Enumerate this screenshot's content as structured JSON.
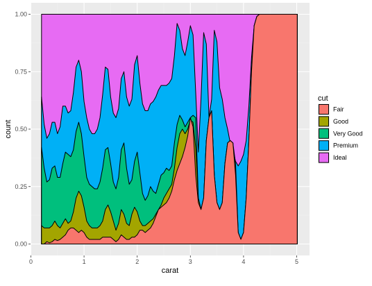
{
  "chart_data": {
    "type": "area",
    "subtype": "stacked filled density (proportion)",
    "xlabel": "carat",
    "ylabel": "count",
    "xlim": [
      0,
      5.2
    ],
    "ylim": [
      0,
      1
    ],
    "x_ticks": [
      "0",
      "1",
      "2",
      "3",
      "4",
      "5"
    ],
    "y_ticks": [
      "0.00",
      "0.25",
      "0.50",
      "0.75",
      "1.00"
    ],
    "x_tick_values": [
      0,
      1,
      2,
      3,
      4,
      5
    ],
    "y_tick_values": [
      0,
      0.25,
      0.5,
      0.75,
      1
    ],
    "grid": true,
    "legend_position": "right",
    "legend_title": "cut",
    "x": [
      0.2,
      0.25,
      0.3,
      0.35,
      0.4,
      0.45,
      0.5,
      0.55,
      0.6,
      0.65,
      0.7,
      0.75,
      0.8,
      0.85,
      0.9,
      0.95,
      1.0,
      1.05,
      1.1,
      1.15,
      1.2,
      1.25,
      1.3,
      1.35,
      1.4,
      1.45,
      1.5,
      1.55,
      1.6,
      1.65,
      1.7,
      1.75,
      1.8,
      1.85,
      1.9,
      1.95,
      2.0,
      2.05,
      2.1,
      2.15,
      2.2,
      2.25,
      2.3,
      2.35,
      2.4,
      2.45,
      2.5,
      2.55,
      2.6,
      2.65,
      2.7,
      2.75,
      2.8,
      2.85,
      2.9,
      2.95,
      3.0,
      3.05,
      3.1,
      3.15,
      3.2,
      3.25,
      3.3,
      3.35,
      3.4,
      3.45,
      3.5,
      3.55,
      3.6,
      3.65,
      3.7,
      3.75,
      3.8,
      3.85,
      3.9,
      3.95,
      4.0,
      4.05,
      4.1,
      4.15,
      4.2,
      4.25,
      4.3,
      4.35,
      4.4,
      4.5,
      4.6,
      4.7,
      4.8,
      4.9,
      5.01
    ],
    "series": [
      {
        "name": "Fair",
        "color": "#F8766D",
        "top": [
          0.0,
          0.0,
          0.01,
          0.005,
          0.01,
          0.02,
          0.015,
          0.02,
          0.03,
          0.04,
          0.06,
          0.07,
          0.07,
          0.06,
          0.05,
          0.06,
          0.05,
          0.03,
          0.02,
          0.02,
          0.02,
          0.02,
          0.02,
          0.03,
          0.03,
          0.03,
          0.03,
          0.02,
          0.01,
          0.02,
          0.04,
          0.03,
          0.02,
          0.02,
          0.03,
          0.03,
          0.04,
          0.06,
          0.06,
          0.05,
          0.06,
          0.07,
          0.09,
          0.12,
          0.15,
          0.16,
          0.17,
          0.18,
          0.2,
          0.23,
          0.28,
          0.32,
          0.35,
          0.38,
          0.42,
          0.47,
          0.55,
          0.51,
          0.3,
          0.18,
          0.15,
          0.2,
          0.45,
          0.55,
          0.58,
          0.3,
          0.18,
          0.15,
          0.18,
          0.35,
          0.44,
          0.45,
          0.44,
          0.3,
          0.05,
          0.02,
          0.05,
          0.2,
          0.45,
          0.75,
          0.95,
          0.99,
          1.0,
          1.0,
          1.0,
          1.0,
          1.0,
          1.0,
          1.0,
          1.0,
          1.0
        ]
      },
      {
        "name": "Good",
        "color": "#A3A500",
        "top": [
          0.08,
          0.07,
          0.07,
          0.07,
          0.08,
          0.1,
          0.08,
          0.07,
          0.09,
          0.11,
          0.09,
          0.1,
          0.14,
          0.2,
          0.23,
          0.21,
          0.16,
          0.1,
          0.08,
          0.07,
          0.07,
          0.07,
          0.08,
          0.1,
          0.15,
          0.17,
          0.14,
          0.1,
          0.06,
          0.09,
          0.15,
          0.13,
          0.09,
          0.08,
          0.13,
          0.16,
          0.14,
          0.1,
          0.08,
          0.08,
          0.09,
          0.1,
          0.11,
          0.13,
          0.15,
          0.17,
          0.2,
          0.22,
          0.24,
          0.26,
          0.33,
          0.42,
          0.48,
          0.5,
          0.48,
          0.5,
          0.54,
          0.53,
          0.42,
          0.2,
          0.15,
          0.2,
          0.45,
          0.55,
          0.58,
          0.3,
          0.18,
          0.15,
          0.18,
          0.35,
          0.44,
          0.45,
          0.44,
          0.3,
          0.05,
          0.02,
          0.05,
          0.2,
          0.45,
          0.75,
          0.95,
          0.99,
          1.0,
          1.0,
          1.0,
          1.0,
          1.0,
          1.0,
          1.0,
          1.0,
          1.0
        ]
      },
      {
        "name": "Very Good",
        "color": "#00BF7D",
        "top": [
          0.42,
          0.33,
          0.27,
          0.28,
          0.33,
          0.34,
          0.29,
          0.29,
          0.35,
          0.4,
          0.39,
          0.38,
          0.41,
          0.49,
          0.53,
          0.48,
          0.38,
          0.29,
          0.26,
          0.25,
          0.24,
          0.24,
          0.27,
          0.33,
          0.41,
          0.42,
          0.35,
          0.27,
          0.24,
          0.29,
          0.41,
          0.44,
          0.33,
          0.26,
          0.28,
          0.36,
          0.4,
          0.31,
          0.22,
          0.19,
          0.21,
          0.25,
          0.23,
          0.22,
          0.26,
          0.3,
          0.31,
          0.33,
          0.32,
          0.34,
          0.44,
          0.52,
          0.56,
          0.54,
          0.51,
          0.53,
          0.55,
          0.56,
          0.55,
          0.2,
          0.15,
          0.2,
          0.45,
          0.55,
          0.58,
          0.3,
          0.18,
          0.15,
          0.18,
          0.35,
          0.44,
          0.45,
          0.44,
          0.35,
          0.05,
          0.02,
          0.05,
          0.2,
          0.45,
          0.75,
          0.95,
          0.99,
          1.0,
          1.0,
          1.0,
          1.0,
          1.0,
          1.0,
          1.0,
          1.0,
          1.0
        ]
      },
      {
        "name": "Premium",
        "color": "#00B0F6",
        "top": [
          0.64,
          0.52,
          0.46,
          0.48,
          0.53,
          0.53,
          0.48,
          0.51,
          0.6,
          0.6,
          0.57,
          0.58,
          0.66,
          0.77,
          0.8,
          0.75,
          0.62,
          0.55,
          0.5,
          0.48,
          0.48,
          0.5,
          0.55,
          0.65,
          0.77,
          0.76,
          0.64,
          0.57,
          0.55,
          0.59,
          0.72,
          0.75,
          0.64,
          0.6,
          0.63,
          0.78,
          0.82,
          0.7,
          0.61,
          0.58,
          0.58,
          0.61,
          0.62,
          0.64,
          0.67,
          0.69,
          0.69,
          0.69,
          0.7,
          0.72,
          0.82,
          0.96,
          0.93,
          0.85,
          0.82,
          0.88,
          0.95,
          0.91,
          0.66,
          0.4,
          0.63,
          0.92,
          0.87,
          0.55,
          0.63,
          0.93,
          0.88,
          0.68,
          0.63,
          0.55,
          0.5,
          0.44,
          0.41,
          0.36,
          0.34,
          0.36,
          0.39,
          0.45,
          0.6,
          0.81,
          0.95,
          0.99,
          1.0,
          1.0,
          1.0,
          1.0,
          1.0,
          1.0,
          1.0,
          1.0,
          1.0
        ]
      },
      {
        "name": "Ideal",
        "color": "#E76BF3",
        "top": [
          1.0,
          1.0,
          1.0,
          1.0,
          1.0,
          1.0,
          1.0,
          1.0,
          1.0,
          1.0,
          1.0,
          1.0,
          1.0,
          1.0,
          1.0,
          1.0,
          1.0,
          1.0,
          1.0,
          1.0,
          1.0,
          1.0,
          1.0,
          1.0,
          1.0,
          1.0,
          1.0,
          1.0,
          1.0,
          1.0,
          1.0,
          1.0,
          1.0,
          1.0,
          1.0,
          1.0,
          1.0,
          1.0,
          1.0,
          1.0,
          1.0,
          1.0,
          1.0,
          1.0,
          1.0,
          1.0,
          1.0,
          1.0,
          1.0,
          1.0,
          1.0,
          1.0,
          1.0,
          1.0,
          1.0,
          1.0,
          1.0,
          1.0,
          1.0,
          1.0,
          1.0,
          1.0,
          1.0,
          1.0,
          1.0,
          1.0,
          1.0,
          1.0,
          1.0,
          1.0,
          1.0,
          1.0,
          1.0,
          1.0,
          1.0,
          1.0,
          1.0,
          1.0,
          1.0,
          1.0,
          1.0,
          1.0,
          1.0,
          1.0,
          1.0,
          1.0,
          1.0,
          1.0,
          1.0,
          1.0,
          1.0
        ]
      }
    ],
    "style": {
      "panel_background": "#EBEBEB",
      "grid_major_color": "#FFFFFF",
      "grid_minor_color": "#F2F2F2",
      "outline_color": "#000000"
    }
  }
}
